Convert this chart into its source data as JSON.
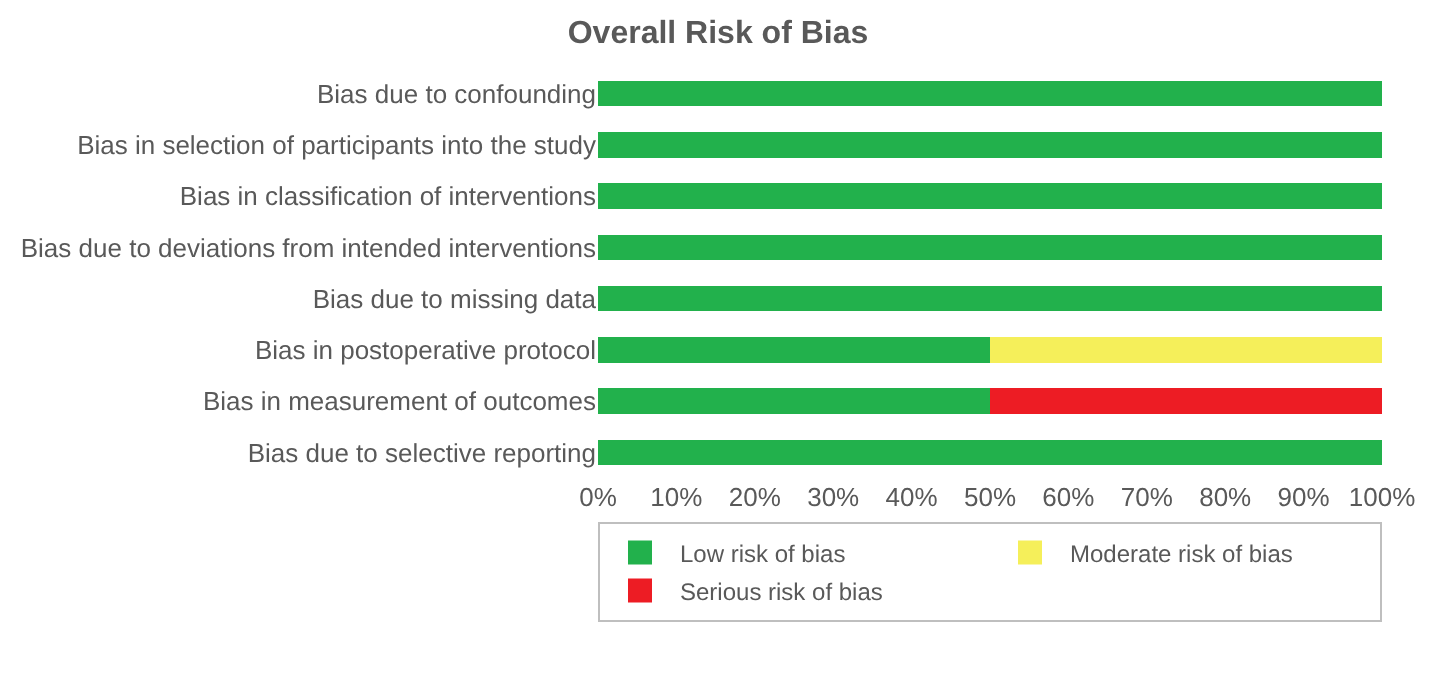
{
  "chart_data": {
    "type": "bar",
    "orientation": "horizontal",
    "stacked": true,
    "title": "Overall Risk of Bias",
    "categories": [
      "Bias due to confounding",
      "Bias in selection of participants into the study",
      "Bias in classification of interventions",
      "Bias due to deviations from intended interventions",
      "Bias due to missing data",
      "Bias in postoperative protocol",
      "Bias in measurement of outcomes",
      "Bias due to selective reporting"
    ],
    "series": [
      {
        "name": "Low risk of bias",
        "color": "#22b14c",
        "values": [
          100,
          100,
          100,
          100,
          100,
          50,
          50,
          100
        ]
      },
      {
        "name": "Moderate risk of bias",
        "color": "#f5ef5a",
        "values": [
          null,
          null,
          null,
          null,
          null,
          50,
          null,
          null
        ]
      },
      {
        "name": "Serious risk of bias",
        "color": "#ed1c24",
        "values": [
          null,
          null,
          null,
          null,
          null,
          null,
          50,
          null
        ]
      }
    ],
    "xlim": [
      0,
      100
    ],
    "xticks": [
      {
        "value": 0,
        "label": "0%"
      },
      {
        "value": 10,
        "label": "10%"
      },
      {
        "value": 20,
        "label": "20%"
      },
      {
        "value": 30,
        "label": "30%"
      },
      {
        "value": 40,
        "label": "40%"
      },
      {
        "value": 50,
        "label": "50%"
      },
      {
        "value": 60,
        "label": "60%"
      },
      {
        "value": 70,
        "label": "70%"
      },
      {
        "value": 80,
        "label": "80%"
      },
      {
        "value": 90,
        "label": "90%"
      },
      {
        "value": 100,
        "label": "100%"
      }
    ],
    "legend": "bottom"
  }
}
